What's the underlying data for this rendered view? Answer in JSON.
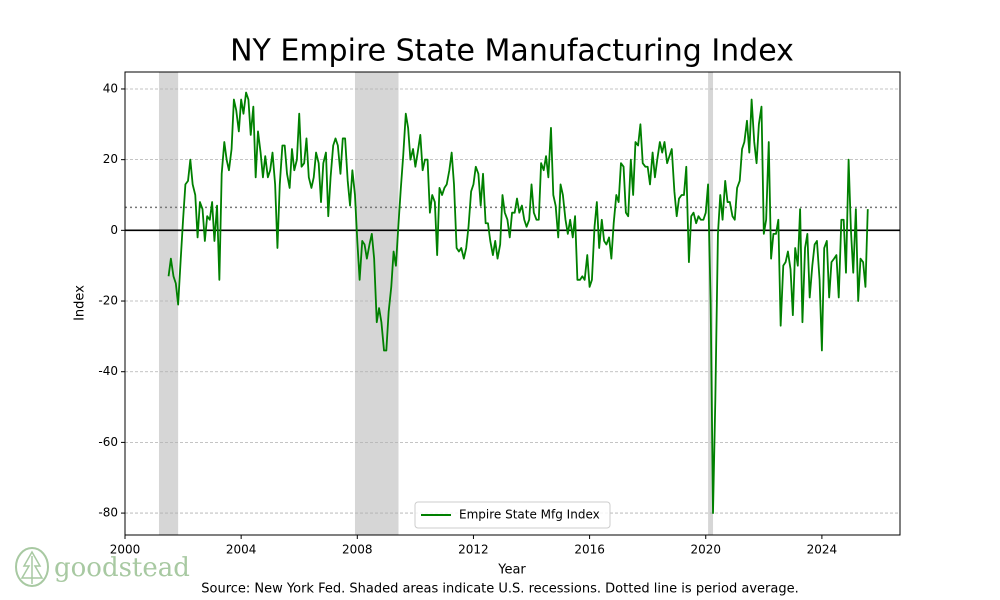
{
  "chart_data": {
    "type": "line",
    "title": "NY Empire State Manufacturing Index",
    "x_label": "Year",
    "y_label": "Index",
    "source": "Source: New York Fed. Shaded areas indicate U.S. recessions. Dotted line is period average.",
    "brand": "goodstead",
    "xlim": [
      2000,
      2026.69
    ],
    "xticks": [
      2000,
      2004,
      2008,
      2012,
      2016,
      2020,
      2024
    ],
    "ylim": [
      -86.2,
      44.8
    ],
    "yticks": [
      -80,
      -60,
      -40,
      -20,
      0,
      20,
      40
    ],
    "grid": true,
    "legend": "lower center",
    "average": 6.5,
    "recessions": [
      [
        2001.17,
        2001.83
      ],
      [
        2007.92,
        2009.42
      ],
      [
        2020.08,
        2020.25
      ]
    ],
    "x": [
      2001.5,
      2001.58,
      2001.67,
      2001.75,
      2001.83,
      2001.92,
      2002,
      2002.08,
      2002.17,
      2002.25,
      2002.33,
      2002.42,
      2002.5,
      2002.58,
      2002.67,
      2002.75,
      2002.83,
      2002.92,
      2003,
      2003.08,
      2003.17,
      2003.25,
      2003.33,
      2003.42,
      2003.5,
      2003.58,
      2003.67,
      2003.75,
      2003.83,
      2003.92,
      2004,
      2004.08,
      2004.17,
      2004.25,
      2004.33,
      2004.42,
      2004.5,
      2004.58,
      2004.67,
      2004.75,
      2004.83,
      2004.92,
      2005,
      2005.08,
      2005.17,
      2005.25,
      2005.33,
      2005.42,
      2005.5,
      2005.58,
      2005.67,
      2005.75,
      2005.83,
      2005.92,
      2006,
      2006.08,
      2006.17,
      2006.25,
      2006.33,
      2006.42,
      2006.5,
      2006.58,
      2006.67,
      2006.75,
      2006.83,
      2006.92,
      2007,
      2007.08,
      2007.17,
      2007.25,
      2007.33,
      2007.42,
      2007.5,
      2007.58,
      2007.67,
      2007.75,
      2007.83,
      2007.92,
      2008,
      2008.08,
      2008.17,
      2008.25,
      2008.33,
      2008.42,
      2008.5,
      2008.58,
      2008.67,
      2008.75,
      2008.83,
      2008.92,
      2009,
      2009.08,
      2009.17,
      2009.25,
      2009.33,
      2009.42,
      2009.5,
      2009.58,
      2009.67,
      2009.75,
      2009.83,
      2009.92,
      2010,
      2010.08,
      2010.17,
      2010.25,
      2010.33,
      2010.42,
      2010.5,
      2010.58,
      2010.67,
      2010.75,
      2010.83,
      2010.92,
      2011,
      2011.08,
      2011.17,
      2011.25,
      2011.33,
      2011.42,
      2011.5,
      2011.58,
      2011.67,
      2011.75,
      2011.83,
      2011.92,
      2012,
      2012.08,
      2012.17,
      2012.25,
      2012.33,
      2012.42,
      2012.5,
      2012.58,
      2012.67,
      2012.75,
      2012.83,
      2012.92,
      2013,
      2013.08,
      2013.17,
      2013.25,
      2013.33,
      2013.42,
      2013.5,
      2013.58,
      2013.67,
      2013.75,
      2013.83,
      2013.92,
      2014,
      2014.08,
      2014.17,
      2014.25,
      2014.33,
      2014.42,
      2014.5,
      2014.58,
      2014.67,
      2014.75,
      2014.83,
      2014.92,
      2015,
      2015.08,
      2015.17,
      2015.25,
      2015.33,
      2015.42,
      2015.5,
      2015.58,
      2015.67,
      2015.75,
      2015.83,
      2015.92,
      2016,
      2016.08,
      2016.17,
      2016.25,
      2016.33,
      2016.42,
      2016.5,
      2016.58,
      2016.67,
      2016.75,
      2016.83,
      2016.92,
      2017,
      2017.08,
      2017.17,
      2017.25,
      2017.33,
      2017.42,
      2017.5,
      2017.58,
      2017.67,
      2017.75,
      2017.83,
      2017.92,
      2018,
      2018.08,
      2018.17,
      2018.25,
      2018.33,
      2018.42,
      2018.5,
      2018.58,
      2018.67,
      2018.75,
      2018.83,
      2018.92,
      2019,
      2019.08,
      2019.17,
      2019.25,
      2019.33,
      2019.42,
      2019.5,
      2019.58,
      2019.67,
      2019.75,
      2019.83,
      2019.92,
      2020,
      2020.08,
      2020.17,
      2020.25,
      2020.33,
      2020.42,
      2020.5,
      2020.58,
      2020.67,
      2020.75,
      2020.83,
      2020.92,
      2021,
      2021.08,
      2021.17,
      2021.25,
      2021.33,
      2021.42,
      2021.5,
      2021.58,
      2021.67,
      2021.75,
      2021.83,
      2021.92,
      2022,
      2022.08,
      2022.17,
      2022.25,
      2022.33,
      2022.42,
      2022.5,
      2022.58,
      2022.67,
      2022.75,
      2022.83,
      2022.92,
      2023,
      2023.08,
      2023.17,
      2023.25,
      2023.33,
      2023.42,
      2023.5,
      2023.58,
      2023.67,
      2023.75,
      2023.83,
      2023.92,
      2024,
      2024.08,
      2024.17,
      2024.25,
      2024.33,
      2024.42,
      2024.5,
      2024.58,
      2024.67,
      2024.75,
      2024.83,
      2024.92,
      2025,
      2025.08,
      2025.17,
      2025.25,
      2025.33,
      2025.42,
      2025.5,
      2025.58
    ],
    "series": [
      {
        "name": "Empire State Mfg Index",
        "color": "#008000",
        "values": [
          -13,
          -8,
          -13,
          -15,
          -21,
          -8,
          3,
          13,
          14,
          20,
          13,
          10,
          -2,
          8,
          6,
          -3,
          4,
          3,
          8,
          -3,
          7,
          -14,
          16,
          25,
          20,
          17,
          23,
          37,
          34,
          28,
          37,
          33,
          39,
          37,
          27,
          35,
          15,
          28,
          22,
          15,
          21,
          15,
          17,
          22,
          13,
          -5,
          13,
          24,
          24,
          16,
          12,
          23,
          17,
          20,
          33,
          18,
          19,
          26,
          15,
          12,
          15,
          22,
          19,
          8,
          19,
          22,
          4,
          15,
          24,
          26,
          24,
          16,
          26,
          26,
          14,
          7,
          17,
          10,
          -3,
          -14,
          -3,
          -4,
          -8,
          -4,
          -1,
          -8,
          -26,
          -22,
          -26,
          -34,
          -34,
          -23,
          -16,
          -6,
          -10,
          2,
          12,
          21,
          33,
          29,
          20,
          23,
          18,
          22,
          27,
          17,
          20,
          20,
          5,
          10,
          8,
          -7,
          12,
          10,
          12,
          13,
          17,
          22,
          13,
          -5,
          -6,
          -5,
          -8,
          -5,
          1,
          11,
          13,
          18,
          16,
          7,
          16,
          2,
          2,
          -3,
          -7,
          -3,
          -8,
          -4,
          10,
          5,
          3,
          -2,
          5,
          5,
          9,
          5,
          7,
          3,
          1,
          3,
          13,
          5,
          3,
          3,
          19,
          17,
          21,
          15,
          29,
          10,
          7,
          -2,
          13,
          10,
          3,
          -1,
          3,
          -2,
          4,
          -14,
          -14,
          -13,
          -14,
          -7,
          -16,
          -14,
          1,
          8,
          -5,
          3,
          -3,
          -4,
          -2,
          -8,
          2,
          10,
          8,
          19,
          18,
          5,
          4,
          20,
          10,
          25,
          24,
          30,
          19,
          18,
          18,
          13,
          22,
          15,
          20,
          25,
          22,
          25,
          19,
          21,
          23,
          11,
          4,
          9,
          10,
          10,
          18,
          -9,
          4,
          5,
          2,
          4,
          3,
          3,
          5,
          13,
          -21,
          -80,
          -48,
          -1,
          10,
          3,
          14,
          8,
          8,
          4,
          3,
          12,
          14,
          23,
          25,
          31,
          22,
          37,
          25,
          19,
          30,
          35,
          -1,
          3,
          25,
          -8,
          -1,
          -1,
          3,
          -27,
          -10,
          -9,
          -6,
          -11,
          -24,
          -5,
          -10,
          6,
          -26,
          -5,
          -1,
          -19,
          -10,
          -4,
          -3,
          -14,
          -34,
          -5,
          -3,
          -19,
          -9,
          -8,
          -7,
          -19,
          3,
          3,
          -12,
          20,
          0,
          -12,
          6,
          -20,
          -8,
          -9,
          -16,
          6
        ]
      }
    ]
  }
}
